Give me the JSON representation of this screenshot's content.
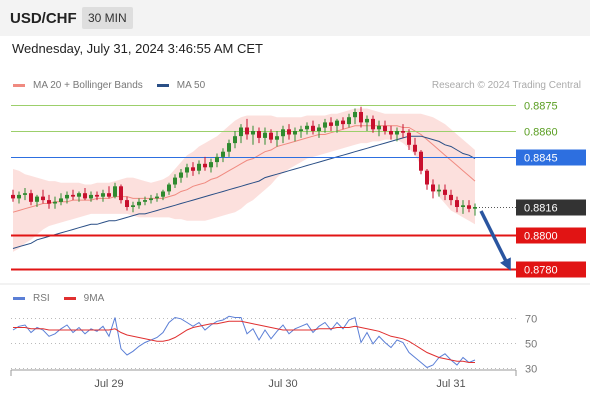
{
  "header": {
    "pair": "USD/CHF",
    "timeframe": "30 MIN",
    "datetime": "Wednesday, July 31, 2024 3:46:55 AM CET",
    "credit": "Research © 2024 Trading Central"
  },
  "colors": {
    "ma20": "#f08a80",
    "bollinger_fill": "#fbd5d1",
    "ma50": "#2a4f86",
    "resistance_line": "#9ccf6b",
    "resistance_label": "#5a9e22",
    "pivot_line": "#2d6fe0",
    "support_line": "#e11414",
    "current_bg": "#333333",
    "bull_candle": "#2f8a2f",
    "bear_candle": "#c8102e",
    "arrow": "#2a55a0",
    "rsi": "#5b7fd6",
    "rsi_ma": "#e03030"
  },
  "chart_data": [
    {
      "type": "candlestick",
      "title": "USD/CHF 30 MIN",
      "legend": [
        "MA 20 + Bollinger Bands",
        "MA 50"
      ],
      "legend_position": "top-left",
      "x_tick_labels": [
        "Jul 29",
        "Jul 30",
        "Jul 31"
      ],
      "ylim": [
        0.8772,
        0.8882
      ],
      "ohlc": [
        [
          0.8823,
          0.8826,
          0.8819,
          0.8821
        ],
        [
          0.8821,
          0.8825,
          0.8818,
          0.8823
        ],
        [
          0.8823,
          0.8827,
          0.882,
          0.8824
        ],
        [
          0.8824,
          0.8826,
          0.8817,
          0.8819
        ],
        [
          0.8819,
          0.8823,
          0.8816,
          0.8822
        ],
        [
          0.8822,
          0.8826,
          0.8818,
          0.882
        ],
        [
          0.882,
          0.8823,
          0.8815,
          0.8818
        ],
        [
          0.8818,
          0.8822,
          0.8815,
          0.8819
        ],
        [
          0.8819,
          0.8824,
          0.8817,
          0.8821
        ],
        [
          0.8821,
          0.8825,
          0.8818,
          0.8823
        ],
        [
          0.8823,
          0.8826,
          0.882,
          0.8822
        ],
        [
          0.8822,
          0.8825,
          0.8819,
          0.8824
        ],
        [
          0.8824,
          0.8827,
          0.882,
          0.8821
        ],
        [
          0.8821,
          0.8825,
          0.8819,
          0.8823
        ],
        [
          0.8823,
          0.8825,
          0.882,
          0.8822
        ],
        [
          0.8822,
          0.8826,
          0.8819,
          0.8824
        ],
        [
          0.8824,
          0.8828,
          0.8821,
          0.8822
        ],
        [
          0.8822,
          0.883,
          0.8821,
          0.8828
        ],
        [
          0.8828,
          0.8829,
          0.8818,
          0.882
        ],
        [
          0.882,
          0.8822,
          0.8814,
          0.8816
        ],
        [
          0.8816,
          0.8819,
          0.8813,
          0.8817
        ],
        [
          0.8817,
          0.8821,
          0.8815,
          0.8819
        ],
        [
          0.8819,
          0.8822,
          0.8817,
          0.882
        ],
        [
          0.882,
          0.8823,
          0.8818,
          0.8821
        ],
        [
          0.8821,
          0.8824,
          0.8819,
          0.8822
        ],
        [
          0.8822,
          0.8826,
          0.882,
          0.8825
        ],
        [
          0.8825,
          0.883,
          0.8823,
          0.8829
        ],
        [
          0.8829,
          0.8835,
          0.8827,
          0.8833
        ],
        [
          0.8833,
          0.8838,
          0.883,
          0.8836
        ],
        [
          0.8836,
          0.8841,
          0.8833,
          0.8839
        ],
        [
          0.8839,
          0.8842,
          0.8834,
          0.8837
        ],
        [
          0.8837,
          0.8843,
          0.8835,
          0.8841
        ],
        [
          0.8841,
          0.8845,
          0.8837,
          0.8839
        ],
        [
          0.8839,
          0.8844,
          0.8836,
          0.8842
        ],
        [
          0.8842,
          0.8847,
          0.8839,
          0.8845
        ],
        [
          0.8845,
          0.885,
          0.8842,
          0.8848
        ],
        [
          0.8848,
          0.8855,
          0.8845,
          0.8853
        ],
        [
          0.8853,
          0.886,
          0.885,
          0.8857
        ],
        [
          0.8857,
          0.8864,
          0.8853,
          0.8862
        ],
        [
          0.8862,
          0.8867,
          0.8855,
          0.8858
        ],
        [
          0.8858,
          0.8863,
          0.8852,
          0.886
        ],
        [
          0.886,
          0.8862,
          0.8853,
          0.8856
        ],
        [
          0.8856,
          0.8862,
          0.8852,
          0.8859
        ],
        [
          0.8859,
          0.8861,
          0.8853,
          0.8855
        ],
        [
          0.8855,
          0.886,
          0.8851,
          0.8857
        ],
        [
          0.8857,
          0.8863,
          0.8853,
          0.8861
        ],
        [
          0.8861,
          0.8864,
          0.8855,
          0.8858
        ],
        [
          0.8858,
          0.8862,
          0.8854,
          0.886
        ],
        [
          0.886,
          0.8863,
          0.8856,
          0.8861
        ],
        [
          0.8861,
          0.8865,
          0.8858,
          0.8863
        ],
        [
          0.8863,
          0.8866,
          0.8858,
          0.886
        ],
        [
          0.886,
          0.8864,
          0.8856,
          0.8862
        ],
        [
          0.8862,
          0.8867,
          0.8859,
          0.8865
        ],
        [
          0.8865,
          0.8868,
          0.886,
          0.8863
        ],
        [
          0.8863,
          0.8867,
          0.8859,
          0.8866
        ],
        [
          0.8866,
          0.8868,
          0.8861,
          0.8864
        ],
        [
          0.8864,
          0.887,
          0.8862,
          0.8868
        ],
        [
          0.8868,
          0.8873,
          0.8864,
          0.8871
        ],
        [
          0.8871,
          0.8874,
          0.8862,
          0.8865
        ],
        [
          0.8865,
          0.8869,
          0.886,
          0.8867
        ],
        [
          0.8867,
          0.8869,
          0.8859,
          0.8861
        ],
        [
          0.8861,
          0.8866,
          0.8857,
          0.8863
        ],
        [
          0.8863,
          0.8866,
          0.8858,
          0.886
        ],
        [
          0.886,
          0.8863,
          0.8855,
          0.8858
        ],
        [
          0.8858,
          0.8862,
          0.8854,
          0.886
        ],
        [
          0.886,
          0.8864,
          0.8856,
          0.8859
        ],
        [
          0.8859,
          0.8861,
          0.8849,
          0.8852
        ],
        [
          0.8852,
          0.8856,
          0.8846,
          0.8848
        ],
        [
          0.8848,
          0.8849,
          0.8835,
          0.8837
        ],
        [
          0.8837,
          0.8838,
          0.8826,
          0.8829
        ],
        [
          0.8829,
          0.8832,
          0.8821,
          0.8825
        ],
        [
          0.8825,
          0.8829,
          0.8822,
          0.8826
        ],
        [
          0.8826,
          0.8829,
          0.882,
          0.8823
        ],
        [
          0.8823,
          0.8826,
          0.8817,
          0.882
        ],
        [
          0.882,
          0.8822,
          0.8813,
          0.8816
        ],
        [
          0.8816,
          0.882,
          0.8812,
          0.8817
        ],
        [
          0.8817,
          0.882,
          0.8813,
          0.8815
        ],
        [
          0.8815,
          0.8818,
          0.8811,
          0.8816
        ]
      ],
      "ma20": [
        0.8813,
        0.8814,
        0.8815,
        0.8816,
        0.8817,
        0.8818,
        0.8818,
        0.8819,
        0.8819,
        0.8819,
        0.882,
        0.882,
        0.882,
        0.882,
        0.8821,
        0.8821,
        0.8821,
        0.8822,
        0.8822,
        0.8822,
        0.8821,
        0.8821,
        0.8821,
        0.8821,
        0.8821,
        0.8821,
        0.8822,
        0.8823,
        0.8825,
        0.8826,
        0.8828,
        0.8829,
        0.883,
        0.8832,
        0.8833,
        0.8835,
        0.8837,
        0.8839,
        0.8841,
        0.8843,
        0.8844,
        0.8846,
        0.8848,
        0.8849,
        0.8851,
        0.8852,
        0.8853,
        0.8854,
        0.8855,
        0.8856,
        0.8857,
        0.8858,
        0.8858,
        0.8859,
        0.886,
        0.8861,
        0.8862,
        0.8863,
        0.8863,
        0.8863,
        0.8863,
        0.8863,
        0.8863,
        0.8863,
        0.8863,
        0.8862,
        0.8862,
        0.886,
        0.8858,
        0.8855,
        0.8852,
        0.8849,
        0.8846,
        0.8843,
        0.884,
        0.8837,
        0.8834,
        0.8831
      ],
      "bollinger_upper": [
        0.8838,
        0.8837,
        0.8835,
        0.8834,
        0.8833,
        0.8832,
        0.8831,
        0.8831,
        0.883,
        0.883,
        0.883,
        0.883,
        0.8829,
        0.8829,
        0.883,
        0.883,
        0.883,
        0.8831,
        0.8832,
        0.8833,
        0.8833,
        0.8832,
        0.8831,
        0.883,
        0.8831,
        0.8832,
        0.8834,
        0.8838,
        0.8842,
        0.8846,
        0.8848,
        0.8851,
        0.8853,
        0.8855,
        0.8857,
        0.886,
        0.8863,
        0.8866,
        0.8868,
        0.8869,
        0.8869,
        0.8869,
        0.8869,
        0.8869,
        0.8868,
        0.8868,
        0.8868,
        0.8868,
        0.8868,
        0.8869,
        0.8869,
        0.8869,
        0.8869,
        0.887,
        0.887,
        0.8871,
        0.8872,
        0.8873,
        0.8873,
        0.8873,
        0.8872,
        0.8871,
        0.887,
        0.887,
        0.887,
        0.887,
        0.887,
        0.887,
        0.887,
        0.8869,
        0.8868,
        0.8866,
        0.8864,
        0.8861,
        0.8858,
        0.8855,
        0.8852,
        0.8849
      ],
      "bollinger_lower": [
        0.879,
        0.8792,
        0.8795,
        0.8797,
        0.88,
        0.8803,
        0.8805,
        0.8806,
        0.8807,
        0.8808,
        0.8809,
        0.881,
        0.8811,
        0.8812,
        0.8812,
        0.8812,
        0.8812,
        0.8812,
        0.8812,
        0.8812,
        0.8811,
        0.881,
        0.881,
        0.881,
        0.881,
        0.881,
        0.881,
        0.8809,
        0.8809,
        0.8808,
        0.8808,
        0.8808,
        0.8808,
        0.8809,
        0.881,
        0.8811,
        0.8812,
        0.8813,
        0.8815,
        0.8818,
        0.882,
        0.8823,
        0.8826,
        0.8829,
        0.8833,
        0.8836,
        0.8838,
        0.884,
        0.8842,
        0.8844,
        0.8845,
        0.8846,
        0.8847,
        0.8848,
        0.8849,
        0.885,
        0.8851,
        0.8852,
        0.8853,
        0.8853,
        0.8854,
        0.8854,
        0.8855,
        0.8855,
        0.8855,
        0.8853,
        0.885,
        0.8846,
        0.884,
        0.8834,
        0.8827,
        0.8822,
        0.8818,
        0.8814,
        0.8812,
        0.881,
        0.8808,
        0.8806
      ],
      "ma50": [
        0.8792,
        0.8793,
        0.8794,
        0.8795,
        0.8797,
        0.8798,
        0.8799,
        0.88,
        0.8801,
        0.8802,
        0.8803,
        0.8804,
        0.8805,
        0.8806,
        0.8806,
        0.8807,
        0.8808,
        0.8808,
        0.8809,
        0.881,
        0.8811,
        0.8812,
        0.8812,
        0.8813,
        0.8814,
        0.8815,
        0.8816,
        0.8817,
        0.8818,
        0.8819,
        0.882,
        0.8821,
        0.8822,
        0.8823,
        0.8824,
        0.8825,
        0.8826,
        0.8827,
        0.8828,
        0.8829,
        0.883,
        0.8831,
        0.8833,
        0.8834,
        0.8835,
        0.8836,
        0.8837,
        0.8838,
        0.8839,
        0.884,
        0.8841,
        0.8842,
        0.8843,
        0.8844,
        0.8845,
        0.8846,
        0.8847,
        0.8848,
        0.8849,
        0.885,
        0.8851,
        0.8852,
        0.8853,
        0.8854,
        0.8855,
        0.8856,
        0.8857,
        0.8857,
        0.8857,
        0.8856,
        0.8855,
        0.8854,
        0.8852,
        0.8851,
        0.8849,
        0.8847,
        0.8846,
        0.8844
      ],
      "levels": [
        {
          "value": 0.8875,
          "label": "0.8875",
          "kind": "resistance"
        },
        {
          "value": 0.886,
          "label": "0.8860",
          "kind": "resistance"
        },
        {
          "value": 0.8845,
          "label": "0.8845",
          "kind": "pivot"
        },
        {
          "value": 0.8816,
          "label": "0.8816",
          "kind": "current"
        },
        {
          "value": 0.88,
          "label": "0.8800",
          "kind": "support"
        },
        {
          "value": 0.878,
          "label": "0.8780",
          "kind": "support"
        }
      ],
      "forecast_arrow": {
        "from": 0.8816,
        "to": 0.878
      }
    },
    {
      "type": "line",
      "legend": [
        "RSI",
        "9MA"
      ],
      "legend_position": "top-left",
      "ylim": [
        20,
        80
      ],
      "y_ticks": [
        70,
        50,
        30
      ],
      "rsi": [
        60,
        63,
        64,
        58,
        62,
        60,
        55,
        57,
        61,
        64,
        58,
        62,
        57,
        61,
        59,
        63,
        55,
        70,
        45,
        40,
        43,
        47,
        50,
        52,
        54,
        58,
        66,
        70,
        69,
        66,
        63,
        66,
        60,
        64,
        67,
        68,
        71,
        70,
        70,
        57,
        61,
        52,
        60,
        53,
        59,
        64,
        57,
        61,
        63,
        65,
        58,
        63,
        66,
        60,
        66,
        61,
        68,
        70,
        50,
        58,
        49,
        55,
        50,
        46,
        52,
        50,
        42,
        38,
        34,
        30,
        32,
        38,
        41,
        36,
        32,
        38,
        34,
        36
      ],
      "rsi_9ma": [
        62,
        62,
        62,
        61,
        61,
        61,
        60,
        60,
        60,
        60,
        60,
        60,
        60,
        60,
        60,
        60,
        60,
        61,
        58,
        56,
        55,
        54,
        53,
        52,
        51,
        51,
        52,
        54,
        57,
        60,
        62,
        63,
        64,
        65,
        65,
        66,
        67,
        67,
        67,
        66,
        65,
        64,
        63,
        62,
        61,
        60,
        60,
        60,
        60,
        60,
        60,
        61,
        61,
        61,
        62,
        62,
        62,
        63,
        62,
        61,
        60,
        59,
        57,
        55,
        54,
        53,
        51,
        48,
        45,
        42,
        40,
        38,
        37,
        36,
        35,
        35,
        34,
        34
      ]
    }
  ]
}
